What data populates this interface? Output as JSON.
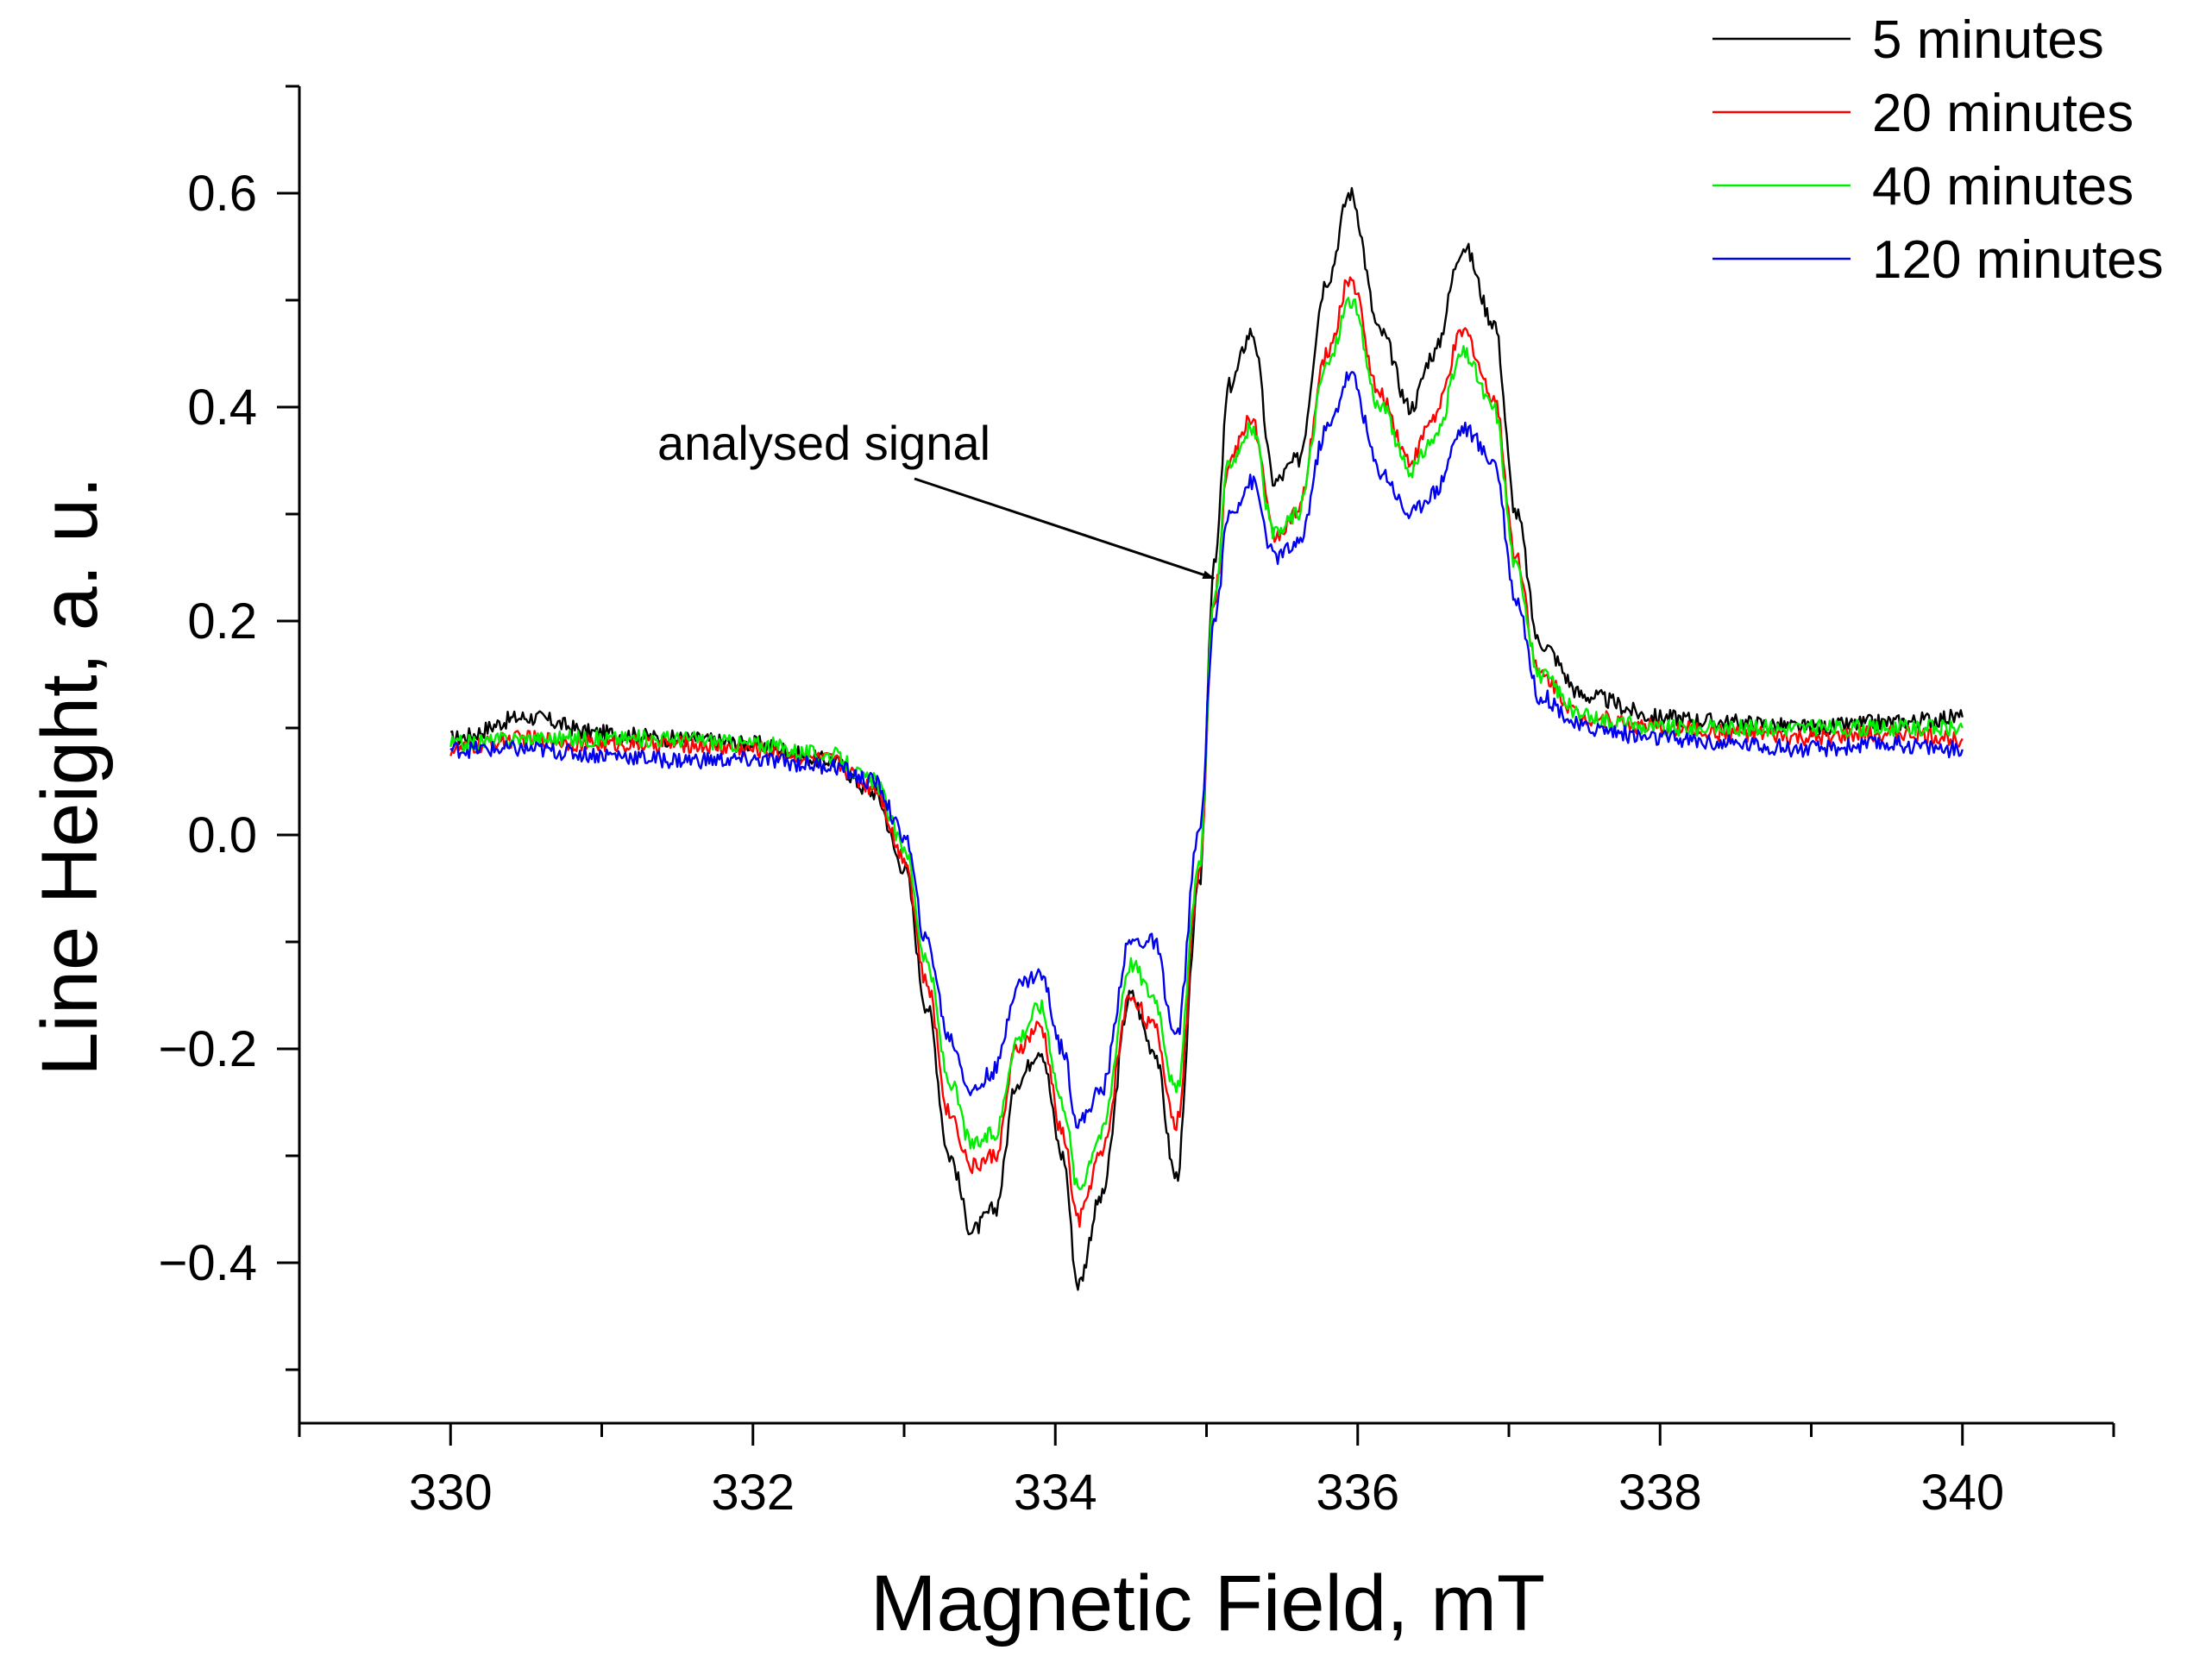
{
  "chart_data": {
    "type": "line",
    "title": "",
    "xlabel": "Magnetic Field, mT",
    "ylabel": "Line Height, a. u.",
    "xlim": [
      329,
      341
    ],
    "ylim": [
      -0.55,
      0.7
    ],
    "x_ticks": [
      330,
      332,
      334,
      336,
      338,
      340
    ],
    "x_tick_labels": [
      "330",
      "332",
      "334",
      "336",
      "338",
      "340"
    ],
    "x_minor_step": 1,
    "y_ticks": [
      0.6,
      0.4,
      0.2,
      0.0,
      -0.2,
      -0.4
    ],
    "y_tick_labels": [
      "0.6",
      "0.4",
      "0.2",
      "0.0",
      "−0.2",
      "−0.4"
    ],
    "y_minor_step": 0.1,
    "grid": false,
    "legend_position": "top-right",
    "annotation": {
      "text": "analysed signal",
      "arrow_to": [
        335.05,
        0.24
      ]
    },
    "x": [
      330.0,
      330.5,
      331.0,
      331.5,
      332.0,
      332.5,
      332.8,
      333.0,
      333.15,
      333.3,
      333.45,
      333.6,
      333.75,
      333.9,
      334.05,
      334.15,
      334.3,
      334.5,
      334.65,
      334.8,
      334.95,
      335.05,
      335.15,
      335.3,
      335.45,
      335.6,
      335.8,
      335.95,
      336.15,
      336.35,
      336.5,
      336.7,
      336.9,
      337.05,
      337.2,
      337.5,
      338.0,
      338.5,
      339.0,
      339.5,
      340.0
    ],
    "series": [
      {
        "name": "5 minutes",
        "color": "#000000",
        "values": [
          0.09,
          0.11,
          0.095,
          0.09,
          0.085,
          0.07,
          0.04,
          -0.03,
          -0.16,
          -0.3,
          -0.37,
          -0.35,
          -0.23,
          -0.2,
          -0.3,
          -0.42,
          -0.34,
          -0.15,
          -0.2,
          -0.32,
          -0.05,
          0.25,
          0.42,
          0.47,
          0.33,
          0.35,
          0.52,
          0.6,
          0.47,
          0.4,
          0.45,
          0.55,
          0.48,
          0.3,
          0.18,
          0.13,
          0.11,
          0.105,
          0.1,
          0.105,
          0.11
        ]
      },
      {
        "name": "20 minutes",
        "color": "#ff0000",
        "values": [
          0.08,
          0.09,
          0.085,
          0.085,
          0.08,
          0.07,
          0.045,
          -0.02,
          -0.14,
          -0.26,
          -0.31,
          -0.3,
          -0.2,
          -0.18,
          -0.28,
          -0.36,
          -0.3,
          -0.15,
          -0.18,
          -0.27,
          -0.04,
          0.22,
          0.35,
          0.39,
          0.28,
          0.3,
          0.45,
          0.52,
          0.41,
          0.35,
          0.39,
          0.47,
          0.41,
          0.26,
          0.15,
          0.11,
          0.1,
          0.095,
          0.09,
          0.095,
          0.09
        ]
      },
      {
        "name": "40 minutes",
        "color": "#00ee00",
        "values": [
          0.085,
          0.09,
          0.09,
          0.09,
          0.085,
          0.075,
          0.05,
          -0.01,
          -0.12,
          -0.23,
          -0.29,
          -0.28,
          -0.19,
          -0.16,
          -0.25,
          -0.33,
          -0.28,
          -0.12,
          -0.15,
          -0.24,
          -0.03,
          0.22,
          0.35,
          0.38,
          0.28,
          0.3,
          0.44,
          0.5,
          0.4,
          0.34,
          0.37,
          0.45,
          0.4,
          0.25,
          0.15,
          0.11,
          0.1,
          0.1,
          0.1,
          0.1,
          0.1
        ]
      },
      {
        "name": "120 minutes",
        "color": "#0000ee",
        "values": [
          0.08,
          0.08,
          0.075,
          0.07,
          0.07,
          0.065,
          0.05,
          0.0,
          -0.1,
          -0.19,
          -0.24,
          -0.22,
          -0.14,
          -0.13,
          -0.2,
          -0.27,
          -0.24,
          -0.1,
          -0.1,
          -0.19,
          0.0,
          0.2,
          0.3,
          0.33,
          0.26,
          0.27,
          0.38,
          0.43,
          0.34,
          0.3,
          0.32,
          0.38,
          0.35,
          0.22,
          0.13,
          0.1,
          0.09,
          0.085,
          0.08,
          0.085,
          0.08
        ]
      }
    ]
  }
}
